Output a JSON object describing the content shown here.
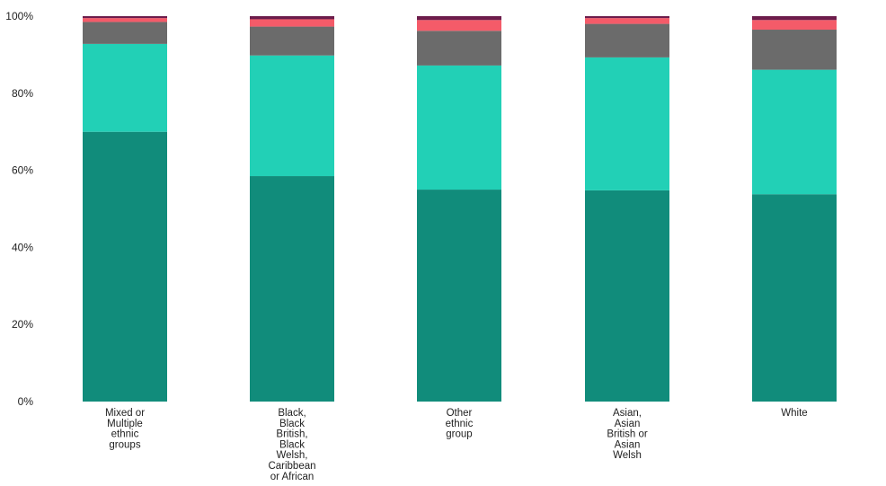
{
  "chart_data": {
    "type": "bar",
    "stacked": true,
    "percent": true,
    "categories": [
      "Mixed or Multiple ethnic groups",
      "Black, Black British, Black Welsh, Caribbean or African",
      "Other ethnic group",
      "Asian, Asian British or Asian Welsh",
      "White"
    ],
    "category_label_lines": [
      [
        "Mixed or",
        "Multiple",
        "ethnic",
        "groups"
      ],
      [
        "Black,",
        "Black",
        "British,",
        "Black",
        "Welsh,",
        "Caribbean",
        "or African"
      ],
      [
        "Other",
        "ethnic",
        "group"
      ],
      [
        "Asian,",
        "Asian",
        "British or",
        "Asian",
        "Welsh"
      ],
      [
        "White"
      ]
    ],
    "series": [
      {
        "color": "#118c7b",
        "values": [
          70.0,
          58.5,
          55.0,
          54.8,
          53.8
        ]
      },
      {
        "color": "#22d0b6",
        "values": [
          22.8,
          31.3,
          32.2,
          34.5,
          32.3
        ]
      },
      {
        "color": "#6b6b6b",
        "values": [
          5.7,
          7.5,
          9.0,
          8.7,
          10.4
        ]
      },
      {
        "color": "#f45b69",
        "values": [
          1.0,
          1.9,
          2.8,
          1.5,
          2.5
        ]
      },
      {
        "color": "#6c1c4b",
        "values": [
          0.5,
          0.8,
          1.0,
          0.5,
          1.0
        ]
      }
    ],
    "y_ticks": [
      "0%",
      "20%",
      "40%",
      "60%",
      "80%",
      "100%"
    ],
    "ylim": [
      0,
      100
    ],
    "grid": false,
    "legend": "none"
  }
}
